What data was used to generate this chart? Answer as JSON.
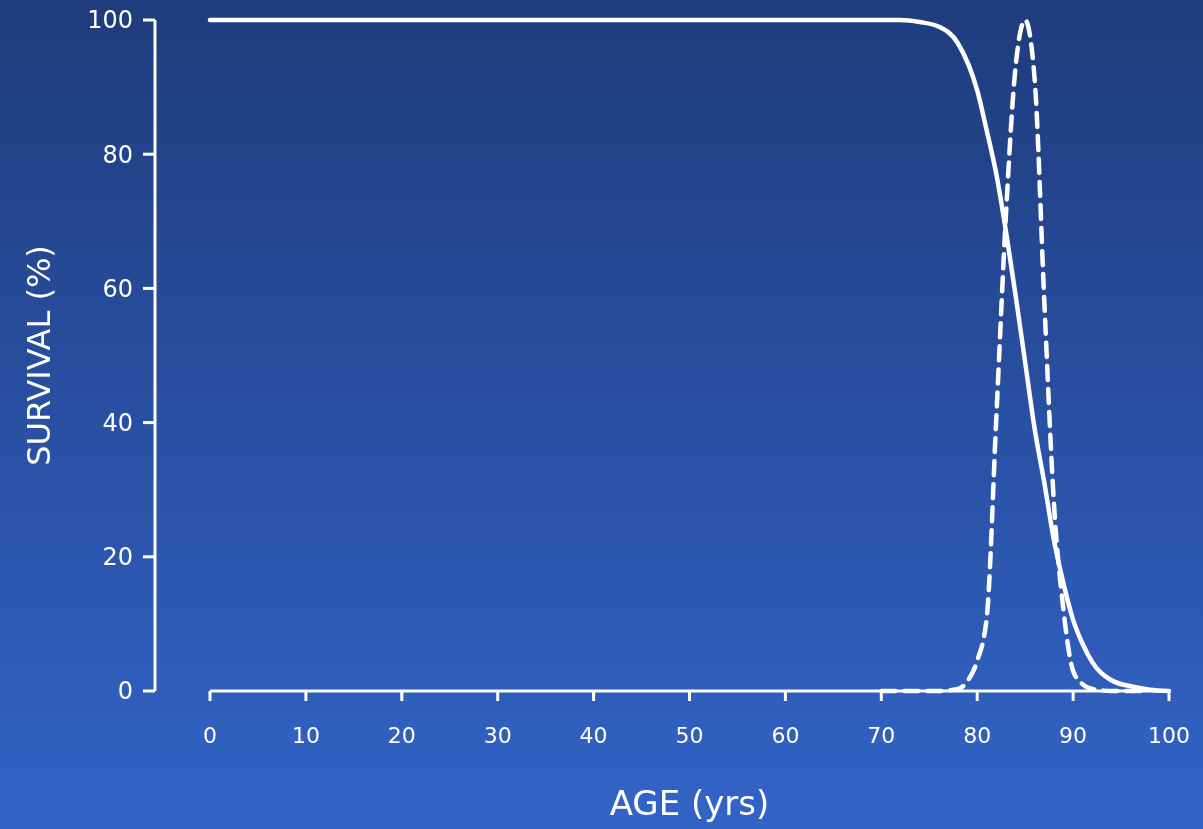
{
  "chart_data": {
    "type": "line",
    "xlabel": "AGE (yrs)",
    "ylabel": "SURVIVAL (%)",
    "xlim": [
      0,
      100
    ],
    "ylim": [
      0,
      100
    ],
    "xticks": [
      0,
      10,
      20,
      30,
      40,
      50,
      60,
      70,
      80,
      90,
      100
    ],
    "yticks": [
      0,
      20,
      40,
      60,
      80,
      100
    ],
    "grid": false,
    "marker": "none",
    "series": [
      {
        "color": "#ffffff",
        "line_style": "solid",
        "x": [
          0,
          72,
          74,
          76,
          78,
          80,
          81,
          82,
          83,
          84,
          85,
          86,
          87,
          88,
          89,
          90,
          91,
          92,
          94,
          96,
          98,
          100
        ],
        "values": [
          100,
          100,
          99.7,
          99,
          96.5,
          89.5,
          83.5,
          77,
          68.5,
          59,
          49,
          39,
          31,
          22.5,
          16,
          10.6,
          7,
          4.3,
          1.6,
          0.7,
          0.2,
          0
        ]
      },
      {
        "color": "#ffffff",
        "line_style": "dashed",
        "x": [
          70,
          76,
          78,
          79,
          80,
          81,
          82,
          83,
          84,
          85,
          86,
          87,
          88,
          89,
          90,
          91,
          92,
          94,
          97
        ],
        "values": [
          0,
          0,
          0.3,
          1.5,
          4.5,
          11,
          41,
          71,
          93,
          100,
          91,
          58,
          28,
          12,
          3,
          1,
          0.3,
          0,
          0
        ]
      }
    ]
  }
}
